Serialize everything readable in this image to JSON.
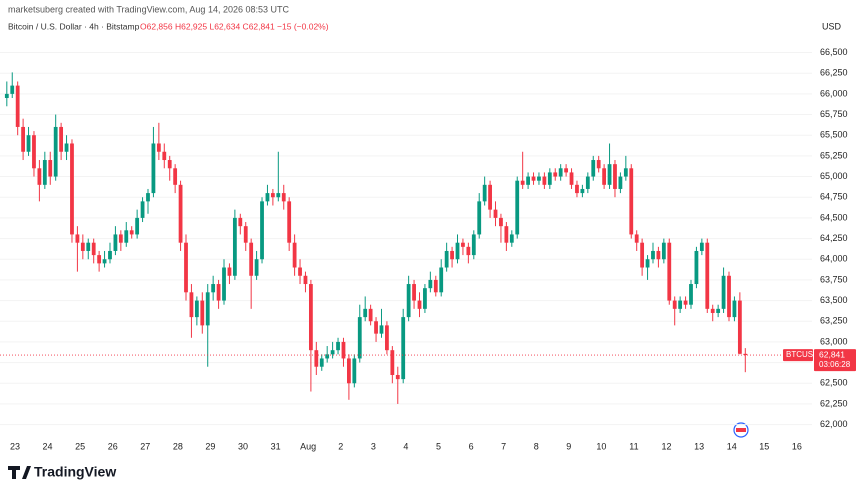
{
  "chart_data": {
    "type": "candlestick",
    "header": {
      "credit": "marketsuberg created with TradingView.com, Aug 14, 2026 08:53 UTC",
      "symbol": "Bitcoin / U.S. Dollar · 4h · Bitstamp",
      "legend": "O62,856 H62,925 L62,634 C62,841 −15 (−0.02%)"
    },
    "currency": "USD",
    "ticker": "BTCUSD",
    "last_price_label": "62,841",
    "countdown": "03:06:28",
    "brand": "TradingView",
    "up_color": "#089981",
    "down_color": "#f23645",
    "grid": true,
    "categories": [
      "23",
      "24",
      "25",
      "26",
      "27",
      "28",
      "29",
      "30",
      "31",
      "Aug",
      "2",
      "3",
      "4",
      "5",
      "6",
      "7",
      "8",
      "9",
      "10",
      "11",
      "12",
      "13",
      "14",
      "15",
      "16"
    ],
    "ylim": [
      61850,
      66700
    ],
    "yticks": [
      {
        "value": 62000,
        "label": "62,000"
      },
      {
        "value": 62250,
        "label": "62,250"
      },
      {
        "value": 62500,
        "label": "62,500"
      },
      {
        "value": 62750,
        "label": "62,750"
      },
      {
        "value": 63000,
        "label": "63,000"
      },
      {
        "value": 63250,
        "label": "63,250"
      },
      {
        "value": 63500,
        "label": "63,500"
      },
      {
        "value": 63750,
        "label": "63,750"
      },
      {
        "value": 64000,
        "label": "64,000"
      },
      {
        "value": 64250,
        "label": "64,250"
      },
      {
        "value": 64500,
        "label": "64,500"
      },
      {
        "value": 64750,
        "label": "64,750"
      },
      {
        "value": 65000,
        "label": "65,000"
      },
      {
        "value": 65250,
        "label": "65,250"
      },
      {
        "value": 65500,
        "label": "65,500"
      },
      {
        "value": 65750,
        "label": "65,750"
      },
      {
        "value": 66000,
        "label": "66,000"
      },
      {
        "value": 66250,
        "label": "66,250"
      },
      {
        "value": 66500,
        "label": "66,500"
      }
    ],
    "ohlc": [
      [
        65950,
        66150,
        65850,
        66000
      ],
      [
        66000,
        66260,
        65950,
        66100
      ],
      [
        66100,
        66150,
        65500,
        65600
      ],
      [
        65600,
        65700,
        65200,
        65300
      ],
      [
        65300,
        65600,
        65250,
        65500
      ],
      [
        65500,
        65550,
        65000,
        65100
      ],
      [
        65100,
        65200,
        64700,
        64900
      ],
      [
        64900,
        65300,
        64850,
        65200
      ],
      [
        65200,
        65300,
        64900,
        65000
      ],
      [
        65000,
        65750,
        64950,
        65600
      ],
      [
        65600,
        65650,
        65200,
        65300
      ],
      [
        65300,
        65500,
        65200,
        65400
      ],
      [
        65400,
        65450,
        64200,
        64300
      ],
      [
        64300,
        64400,
        63850,
        64200
      ],
      [
        64200,
        64300,
        64000,
        64100
      ],
      [
        64100,
        64250,
        64000,
        64200
      ],
      [
        64200,
        64250,
        63950,
        64050
      ],
      [
        64050,
        64100,
        63850,
        63950
      ],
      [
        63950,
        64100,
        63900,
        64000
      ],
      [
        64000,
        64200,
        63950,
        64100
      ],
      [
        64100,
        64400,
        64050,
        64300
      ],
      [
        64300,
        64350,
        64100,
        64200
      ],
      [
        64200,
        64450,
        64150,
        64350
      ],
      [
        64350,
        64400,
        64250,
        64300
      ],
      [
        64300,
        64600,
        64250,
        64500
      ],
      [
        64500,
        64750,
        64450,
        64700
      ],
      [
        64700,
        64850,
        64550,
        64800
      ],
      [
        64800,
        65600,
        64750,
        65400
      ],
      [
        65400,
        65650,
        65200,
        65300
      ],
      [
        65300,
        65400,
        65100,
        65200
      ],
      [
        65200,
        65250,
        64950,
        65100
      ],
      [
        65100,
        65150,
        64800,
        64900
      ],
      [
        64900,
        64950,
        64100,
        64200
      ],
      [
        64200,
        64300,
        63500,
        63600
      ],
      [
        63600,
        63700,
        63050,
        63300
      ],
      [
        63300,
        63550,
        63200,
        63500
      ],
      [
        63500,
        63600,
        63100,
        63200
      ],
      [
        63200,
        63700,
        62700,
        63600
      ],
      [
        63600,
        63800,
        63500,
        63700
      ],
      [
        63700,
        63750,
        63400,
        63500
      ],
      [
        63500,
        64000,
        63450,
        63900
      ],
      [
        63900,
        63950,
        63700,
        63800
      ],
      [
        63800,
        64600,
        63750,
        64500
      ],
      [
        64500,
        64550,
        64300,
        64400
      ],
      [
        64400,
        64450,
        64100,
        64200
      ],
      [
        64200,
        64250,
        63400,
        63800
      ],
      [
        63800,
        64100,
        63750,
        64000
      ],
      [
        64000,
        64750,
        63950,
        64700
      ],
      [
        64700,
        64900,
        64650,
        64800
      ],
      [
        64800,
        64850,
        64650,
        64750
      ],
      [
        64750,
        65300,
        64700,
        64800
      ],
      [
        64800,
        64900,
        64600,
        64700
      ],
      [
        64700,
        64750,
        64100,
        64200
      ],
      [
        64200,
        64300,
        63800,
        63900
      ],
      [
        63900,
        64000,
        63700,
        63800
      ],
      [
        63800,
        63850,
        63600,
        63700
      ],
      [
        63700,
        63750,
        62400,
        62900
      ],
      [
        62900,
        63000,
        62600,
        62700
      ],
      [
        62700,
        62850,
        62650,
        62800
      ],
      [
        62800,
        62950,
        62750,
        62850
      ],
      [
        62850,
        63000,
        62800,
        62900
      ],
      [
        62900,
        63050,
        62850,
        63000
      ],
      [
        63000,
        63050,
        62700,
        62800
      ],
      [
        62800,
        62850,
        62300,
        62500
      ],
      [
        62500,
        62850,
        62450,
        62800
      ],
      [
        62800,
        63450,
        62750,
        63300
      ],
      [
        63300,
        63550,
        63250,
        63400
      ],
      [
        63400,
        63450,
        63200,
        63250
      ],
      [
        63250,
        63300,
        63000,
        63100
      ],
      [
        63100,
        63400,
        63050,
        63200
      ],
      [
        63200,
        63250,
        62850,
        62900
      ],
      [
        62900,
        62950,
        62500,
        62600
      ],
      [
        62600,
        62700,
        62250,
        62550
      ],
      [
        62550,
        63400,
        62500,
        63300
      ],
      [
        63300,
        63800,
        63250,
        63700
      ],
      [
        63700,
        63750,
        63400,
        63500
      ],
      [
        63500,
        63600,
        63300,
        63400
      ],
      [
        63400,
        63700,
        63350,
        63650
      ],
      [
        63650,
        63850,
        63600,
        63750
      ],
      [
        63750,
        63800,
        63550,
        63600
      ],
      [
        63600,
        64000,
        63550,
        63900
      ],
      [
        63900,
        64200,
        63850,
        64100
      ],
      [
        64100,
        64150,
        63900,
        64000
      ],
      [
        64000,
        64300,
        63950,
        64200
      ],
      [
        64200,
        64250,
        64050,
        64150
      ],
      [
        64150,
        64200,
        63950,
        64050
      ],
      [
        64050,
        64350,
        64000,
        64300
      ],
      [
        64300,
        64800,
        64250,
        64700
      ],
      [
        64700,
        65000,
        64650,
        64900
      ],
      [
        64900,
        64950,
        64500,
        64600
      ],
      [
        64600,
        64700,
        64400,
        64500
      ],
      [
        64500,
        64550,
        64200,
        64400
      ],
      [
        64400,
        64450,
        64100,
        64200
      ],
      [
        64200,
        64350,
        64150,
        64300
      ],
      [
        64300,
        65000,
        64250,
        64950
      ],
      [
        64950,
        65300,
        64850,
        64900
      ],
      [
        64900,
        65050,
        64850,
        65000
      ],
      [
        65000,
        65050,
        64900,
        64950
      ],
      [
        64950,
        65050,
        64900,
        65000
      ],
      [
        65000,
        65050,
        64850,
        64900
      ],
      [
        64900,
        65100,
        64850,
        65050
      ],
      [
        65050,
        65100,
        64950,
        65000
      ],
      [
        65000,
        65150,
        64950,
        65100
      ],
      [
        65100,
        65150,
        65000,
        65050
      ],
      [
        65050,
        65100,
        64850,
        64900
      ],
      [
        64900,
        64950,
        64750,
        64800
      ],
      [
        64800,
        64900,
        64750,
        64850
      ],
      [
        64850,
        65050,
        64800,
        65000
      ],
      [
        65000,
        65250,
        64950,
        65200
      ],
      [
        65200,
        65250,
        65050,
        65100
      ],
      [
        65100,
        65150,
        64850,
        64900
      ],
      [
        64900,
        65400,
        64850,
        65150
      ],
      [
        65150,
        65200,
        64750,
        64850
      ],
      [
        64850,
        65050,
        64800,
        65000
      ],
      [
        65000,
        65250,
        64950,
        65100
      ],
      [
        65100,
        65150,
        64250,
        64300
      ],
      [
        64300,
        64350,
        64100,
        64200
      ],
      [
        64200,
        64250,
        63800,
        63900
      ],
      [
        63900,
        64050,
        63750,
        64000
      ],
      [
        64000,
        64200,
        63950,
        64100
      ],
      [
        64100,
        64150,
        63900,
        64000
      ],
      [
        64000,
        64250,
        63950,
        64200
      ],
      [
        64200,
        64250,
        63450,
        63500
      ],
      [
        63500,
        63550,
        63200,
        63400
      ],
      [
        63400,
        63550,
        63350,
        63500
      ],
      [
        63500,
        63550,
        63400,
        63450
      ],
      [
        63450,
        63750,
        63400,
        63700
      ],
      [
        63700,
        64150,
        63650,
        64100
      ],
      [
        64100,
        64250,
        64050,
        64200
      ],
      [
        64200,
        64250,
        63350,
        63400
      ],
      [
        63400,
        63450,
        63250,
        63350
      ],
      [
        63350,
        63450,
        63300,
        63400
      ],
      [
        63400,
        63900,
        63350,
        63800
      ],
      [
        63800,
        63850,
        63250,
        63300
      ],
      [
        63300,
        63550,
        63250,
        63500
      ],
      [
        63500,
        63600,
        62850,
        62856
      ],
      [
        62856,
        62925,
        62634,
        62841
      ]
    ]
  }
}
